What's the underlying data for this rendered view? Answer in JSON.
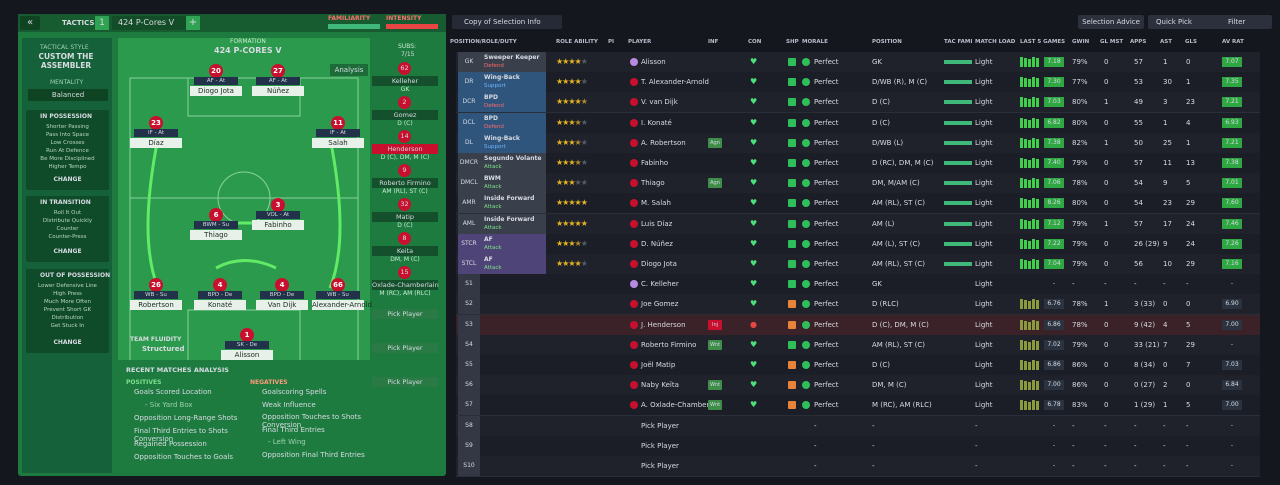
{
  "header": {
    "back": "«",
    "tactics": "TACTICS",
    "slot": "1",
    "tactic_name": "424 P-Cores V",
    "add": "+",
    "familiarity": "FAMILIARITY",
    "intensity": "INTENSITY"
  },
  "sidebar": {
    "style_label": "TACTICAL STYLE",
    "style": "CUSTOM THE ASSEMBLER",
    "mentality_label": "MENTALITY",
    "mentality": "Balanced",
    "sections": [
      {
        "title": "IN POSSESSION",
        "items": [
          "Shorter Passing",
          "Pass Into Space",
          "Low Crosses",
          "Run At Defence",
          "Be More Disciplined",
          "Higher Tempo"
        ],
        "action": "CHANGE"
      },
      {
        "title": "IN TRANSITION",
        "items": [
          "Roll It Out",
          "Distribute Quickly",
          "Counter",
          "Counter-Press"
        ],
        "action": "CHANGE"
      },
      {
        "title": "OUT OF POSSESSION",
        "items": [
          "Lower Defensive Line",
          "High Press",
          "Much More Often",
          "Prevent Short GK",
          "Distribution",
          "Get Stuck In"
        ],
        "action": "CHANGE"
      }
    ]
  },
  "pitch": {
    "formation_label": "FORMATION",
    "formation": "424 P-CORES V",
    "subs_label": "SUBS:",
    "subs_count": "7/15",
    "analysis": "Analysis",
    "fluidity_label": "TEAM FLUIDITY",
    "fluidity": "Structured",
    "players": [
      {
        "number": "20",
        "role": "AF - At",
        "name": "Diogo Jota"
      },
      {
        "number": "27",
        "role": "AF - At",
        "name": "Núñez"
      },
      {
        "number": "23",
        "role": "IF - At",
        "name": "Díaz"
      },
      {
        "number": "11",
        "role": "IF - At",
        "name": "Salah"
      },
      {
        "number": "6",
        "role": "BWM - Su",
        "name": "Thiago"
      },
      {
        "number": "3",
        "role": "VOL - At",
        "name": "Fabinho"
      },
      {
        "number": "26",
        "role": "WB - Su",
        "name": "Robertson"
      },
      {
        "number": "4",
        "role": "BPD - De",
        "name": "Konaté"
      },
      {
        "number": "4",
        "role": "BPD - De",
        "name": "Van Dijk"
      },
      {
        "number": "66",
        "role": "WB - Su",
        "name": "Alexander-Arnold"
      },
      {
        "number": "1",
        "role": "SK - De",
        "name": "Alisson"
      }
    ]
  },
  "subs": [
    {
      "number": "62",
      "name": "Kelleher",
      "position": "GK"
    },
    {
      "number": "2",
      "name": "Gomez",
      "position": "D (C)"
    },
    {
      "number": "14",
      "name": "Henderson",
      "position": "D (C), DM, M (C)"
    },
    {
      "number": "9",
      "name": "Roberto Firmino",
      "position": "AM (RL), ST (C)"
    },
    {
      "number": "32",
      "name": "Matip",
      "position": "D (C)"
    },
    {
      "number": "8",
      "name": "Keita",
      "position": "DM, M (C)"
    },
    {
      "number": "15",
      "name": "Oxlade-Chamberlain",
      "position": "M (RC), AM (RLC)"
    },
    {
      "name": "Pick Player"
    },
    {
      "name": "Pick Player"
    },
    {
      "name": "Pick Player"
    }
  ],
  "analysis": {
    "title": "RECENT MATCHES ANALYSIS",
    "positives_label": "POSITIVES",
    "positives": [
      "Goals Scored Location",
      "- Six Yard Box",
      "Opposition Long-Range Shots",
      "Final Third Entries to Shots Conversion",
      "Regained Possession",
      "Opposition Touches to Goals"
    ],
    "negatives_label": "NEGATIVES",
    "negatives": [
      "Goalscoring Spells",
      "Weak Influence",
      "Opposition Touches to Shots Conversion",
      "Final Third Entries",
      "- Left Wing",
      "Opposition Final Third Entries"
    ]
  },
  "toolbar": {
    "view": "Copy of Selection Info",
    "advice": "Selection Advice",
    "quick_pick": "Quick Pick",
    "filter": "Filter"
  },
  "table": {
    "columns": [
      "POSITION/ROLE/DUTY",
      "ROLE ABILITY",
      "PI",
      "PLAYER",
      "INF",
      "CON",
      "SHP",
      "MORALE",
      "POSITION",
      "TAC FAMI",
      "MATCH LOAD",
      "LAST 5 GAMES",
      "GWIN",
      "GL MST",
      "APPS",
      "AST",
      "GLS",
      "AV RAT"
    ],
    "rows": [
      {
        "pos": "GK",
        "role": "Sweeper Keeper",
        "duty": "Defend",
        "ability": 4,
        "player": "Alisson",
        "morale": "Perfect",
        "position": "GK",
        "load": "Light",
        "last5": "7.18",
        "gwin": "79%",
        "gl_mst": "0",
        "apps": "57",
        "ast": "1",
        "gls": "0",
        "av_rat": "7.07"
      },
      {
        "pos": "DR",
        "role": "Wing-Back",
        "duty": "Support",
        "ability": 4,
        "player": "T. Alexander-Arnold",
        "morale": "Perfect",
        "position": "D/WB (R), M (C)",
        "load": "Light",
        "last5": "7.30",
        "gwin": "77%",
        "gl_mst": "0",
        "apps": "53",
        "ast": "30",
        "gls": "1",
        "av_rat": "7.35"
      },
      {
        "pos": "DCR",
        "role": "BPD",
        "duty": "Defend",
        "ability": 4.5,
        "player": "V. van Dijk",
        "morale": "Perfect",
        "position": "D (C)",
        "load": "Light",
        "last5": "7.03",
        "gwin": "80%",
        "gl_mst": "1",
        "apps": "49",
        "ast": "3",
        "gls": "23",
        "av_rat": "7.21"
      },
      {
        "pos": "DCL",
        "role": "BPD",
        "duty": "Defend",
        "ability": 3.5,
        "player": "I. Konaté",
        "morale": "Perfect",
        "position": "D (C)",
        "load": "Light",
        "last5": "6.82",
        "gwin": "80%",
        "gl_mst": "0",
        "apps": "55",
        "ast": "1",
        "gls": "4",
        "av_rat": "6.93"
      },
      {
        "pos": "DL",
        "role": "Wing-Back",
        "duty": "Support",
        "ability": 3.5,
        "player": "A. Robertson",
        "inf": "Agn",
        "morale": "Perfect",
        "position": "D/WB (L)",
        "load": "Light",
        "last5": "7.38",
        "gwin": "82%",
        "gl_mst": "1",
        "apps": "50",
        "ast": "25",
        "gls": "1",
        "av_rat": "7.21"
      },
      {
        "pos": "DMCR",
        "role": "Segundo Volante",
        "duty": "Attack",
        "ability": 3.5,
        "player": "Fabinho",
        "morale": "Perfect",
        "position": "D (RC), DM, M (C)",
        "load": "Light",
        "last5": "7.40",
        "gwin": "79%",
        "gl_mst": "0",
        "apps": "57",
        "ast": "11",
        "gls": "13",
        "av_rat": "7.38"
      },
      {
        "pos": "DMCL",
        "role": "BWM",
        "duty": "Attack",
        "ability": 3,
        "player": "Thiago",
        "inf": "Agn",
        "morale": "Perfect",
        "position": "DM, M/AM (C)",
        "load": "Light",
        "last5": "7.06",
        "gwin": "78%",
        "gl_mst": "0",
        "apps": "54",
        "ast": "9",
        "gls": "5",
        "av_rat": "7.01"
      },
      {
        "pos": "AMR",
        "role": "Inside Forward",
        "duty": "Attack",
        "ability": 5,
        "player": "M. Salah",
        "morale": "Perfect",
        "position": "AM (RL), ST (C)",
        "load": "Light",
        "last5": "8.26",
        "gwin": "80%",
        "gl_mst": "0",
        "apps": "54",
        "ast": "23",
        "gls": "29",
        "av_rat": "7.60"
      },
      {
        "pos": "AML",
        "role": "Inside Forward",
        "duty": "Attack",
        "ability": 5,
        "player": "Luis Díaz",
        "morale": "Perfect",
        "position": "AM (L)",
        "load": "Light",
        "last5": "7.12",
        "gwin": "79%",
        "gl_mst": "1",
        "apps": "57",
        "ast": "17",
        "gls": "24",
        "av_rat": "7.46"
      },
      {
        "pos": "STCR",
        "role": "AF",
        "duty": "Attack",
        "ability": 3.5,
        "player": "D. Núñez",
        "morale": "Perfect",
        "position": "AM (L), ST (C)",
        "load": "Light",
        "last5": "7.22",
        "gwin": "79%",
        "gl_mst": "0",
        "apps": "26 (29)",
        "ast": "9",
        "gls": "24",
        "av_rat": "7.26"
      },
      {
        "pos": "STCL",
        "role": "AF",
        "duty": "Attack",
        "ability": 4,
        "player": "Diogo Jota",
        "morale": "Perfect",
        "position": "AM (RL), ST (C)",
        "load": "Light",
        "last5": "7.04",
        "gwin": "79%",
        "gl_mst": "0",
        "apps": "56",
        "ast": "10",
        "gls": "29",
        "av_rat": "7.16"
      },
      {
        "pos": "S1",
        "player": "C. Kelleher",
        "morale": "Perfect",
        "position": "GK",
        "load": "Light",
        "last5": "-",
        "gwin": "-",
        "gl_mst": "-",
        "apps": "-",
        "ast": "-",
        "gls": "-",
        "av_rat": "-"
      },
      {
        "pos": "S2",
        "player": "Joe Gomez",
        "morale": "Perfect",
        "position": "D (RLC)",
        "load": "Light",
        "last5": "6.76",
        "gwin": "78%",
        "gl_mst": "1",
        "apps": "3 (33)",
        "ast": "0",
        "gls": "0",
        "av_rat": "6.90"
      },
      {
        "pos": "S3",
        "player": "J. Henderson",
        "inf": "Inj",
        "morale": "Perfect",
        "position": "D (C), DM, M (C)",
        "load": "Light",
        "last5": "6.86",
        "gwin": "78%",
        "gl_mst": "0",
        "apps": "9 (42)",
        "ast": "4",
        "gls": "5",
        "av_rat": "7.00"
      },
      {
        "pos": "S4",
        "player": "Roberto Firmino",
        "inf": "Wnt",
        "morale": "Perfect",
        "position": "AM (RL), ST (C)",
        "load": "Light",
        "last5": "7.02",
        "gwin": "79%",
        "gl_mst": "0",
        "apps": "33 (21)",
        "ast": "7",
        "gls": "29",
        "av_rat": "-"
      },
      {
        "pos": "S5",
        "player": "Joël Matip",
        "morale": "Perfect",
        "position": "D (C)",
        "load": "Light",
        "last5": "6.86",
        "gwin": "86%",
        "gl_mst": "0",
        "apps": "8 (34)",
        "ast": "0",
        "gls": "7",
        "av_rat": "7.03"
      },
      {
        "pos": "S6",
        "player": "Naby Keïta",
        "inf": "Wnt",
        "morale": "Perfect",
        "position": "DM, M (C)",
        "load": "Light",
        "last5": "7.00",
        "gwin": "86%",
        "gl_mst": "0",
        "apps": "0 (27)",
        "ast": "2",
        "gls": "0",
        "av_rat": "6.84"
      },
      {
        "pos": "S7",
        "player": "A. Oxlade-Chamberlain",
        "inf": "Wnt",
        "morale": "Perfect",
        "position": "M (RC), AM (RLC)",
        "load": "Light",
        "last5": "6.78",
        "gwin": "83%",
        "gl_mst": "0",
        "apps": "1 (29)",
        "ast": "1",
        "gls": "5",
        "av_rat": "7.00"
      },
      {
        "pos": "S8",
        "player": "Pick Player",
        "morale": "-",
        "position": "-",
        "load": "-",
        "last5": "-",
        "gwin": "-",
        "gl_mst": "-",
        "apps": "-",
        "ast": "-",
        "gls": "-",
        "av_rat": "-"
      },
      {
        "pos": "S9",
        "player": "Pick Player",
        "morale": "-",
        "position": "-",
        "load": "-",
        "last5": "-",
        "gwin": "-",
        "gl_mst": "-",
        "apps": "-",
        "ast": "-",
        "gls": "-",
        "av_rat": "-"
      },
      {
        "pos": "S10",
        "player": "Pick Player",
        "morale": "-",
        "position": "-",
        "load": "-",
        "last5": "-",
        "gwin": "-",
        "gl_mst": "-",
        "apps": "-",
        "ast": "-",
        "gls": "-",
        "av_rat": "-"
      }
    ]
  }
}
